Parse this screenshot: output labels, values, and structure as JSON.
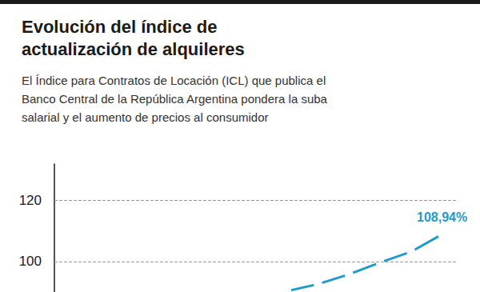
{
  "chart_data": {
    "type": "line",
    "title": "Evolución del índice de\nactualización de alquileres",
    "subtitle": "El Índice para Contratos de Locación (ICL) que publica el\nBanco Central de la República Argentina pondera la suba\nsalarial y el aumento de precios al consumidor",
    "categories": [
      null,
      null,
      null,
      null,
      null,
      null,
      null,
      null,
      null,
      null,
      null,
      null,
      null
    ],
    "values": [
      null,
      null,
      null,
      null,
      null,
      null,
      null,
      90.3,
      92.6,
      95.8,
      99.7,
      103.2,
      108.94
    ],
    "value_labels": [
      null,
      null,
      null,
      null,
      null,
      null,
      null,
      null,
      null,
      null,
      null,
      null,
      "108,94%"
    ],
    "data_labels": true,
    "color": "#1f9ac9",
    "marker": "emptyCircle",
    "ylim": [
      90,
      132
    ],
    "yticks": [
      100,
      120
    ],
    "grid": true,
    "tick_labels": "y"
  }
}
